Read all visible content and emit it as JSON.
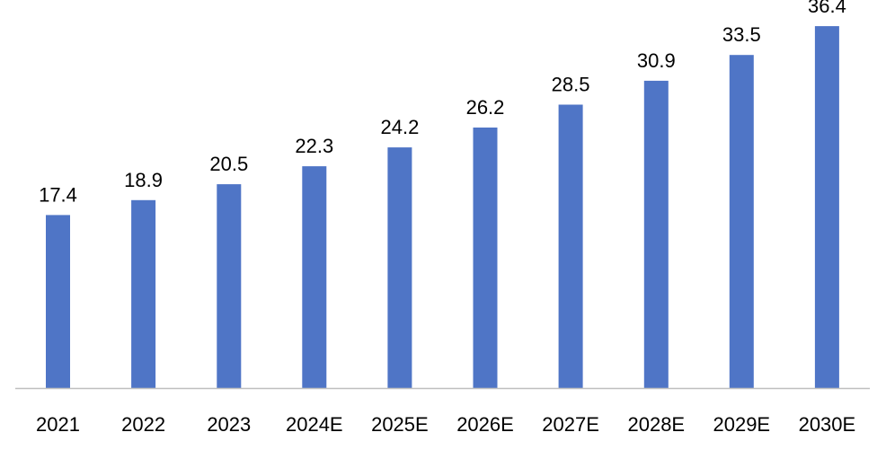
{
  "chart_data": {
    "type": "bar",
    "categories": [
      "2021",
      "2022",
      "2023",
      "2024E",
      "2025E",
      "2026E",
      "2027E",
      "2028E",
      "2029E",
      "2030E"
    ],
    "values": [
      17.4,
      18.9,
      20.5,
      22.3,
      24.2,
      26.2,
      28.5,
      30.9,
      33.5,
      36.4
    ],
    "title": "",
    "xlabel": "",
    "ylabel": "",
    "ylim": [
      0,
      40
    ],
    "grid": false,
    "data_labels": true,
    "bar_color": "#4f75c6",
    "axis_color": "#bfbfbf",
    "text_color": "#000000"
  }
}
